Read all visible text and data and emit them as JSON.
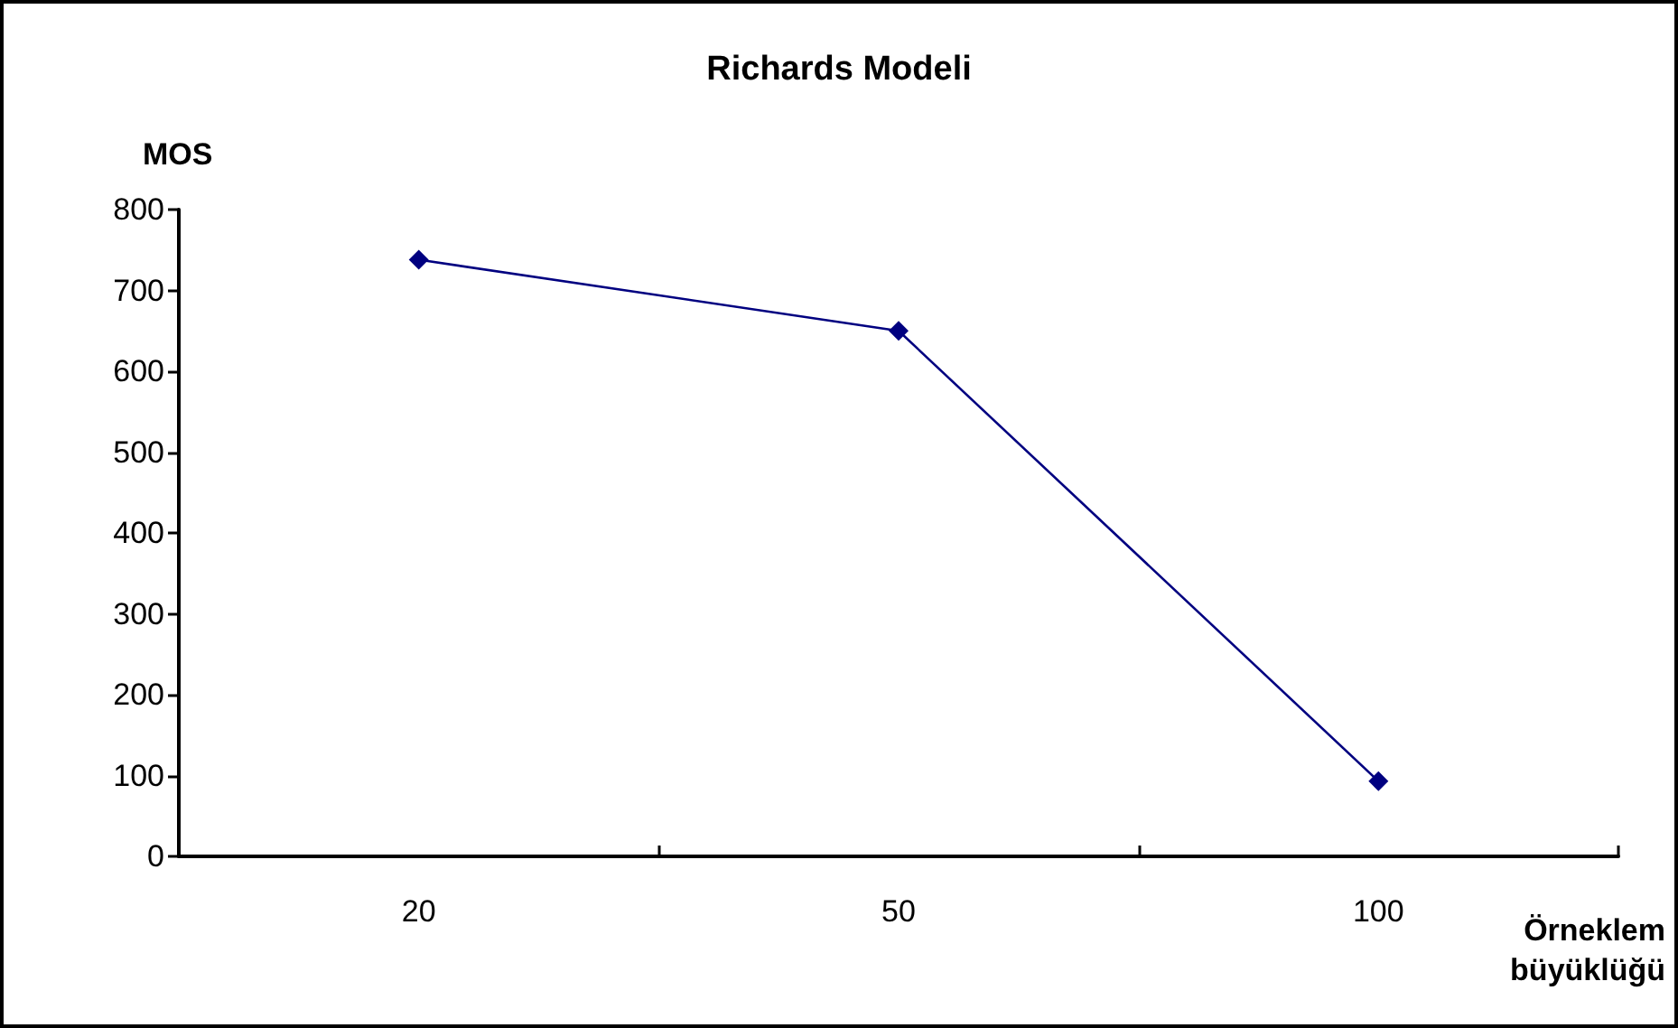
{
  "chart_data": {
    "type": "line",
    "title": "Richards Modeli",
    "ylabel": "MOS",
    "xlabel": "Örneklem\nbüyüklüğü",
    "categories": [
      "20",
      "50",
      "100"
    ],
    "series": [
      {
        "color": "#000080",
        "values": [
          738,
          650,
          93
        ]
      }
    ],
    "ylim": [
      0,
      800
    ],
    "yticks": [
      0,
      100,
      200,
      300,
      400,
      500,
      600,
      700,
      800
    ],
    "grid": false,
    "marker": "diamond",
    "line_style": "solid"
  }
}
